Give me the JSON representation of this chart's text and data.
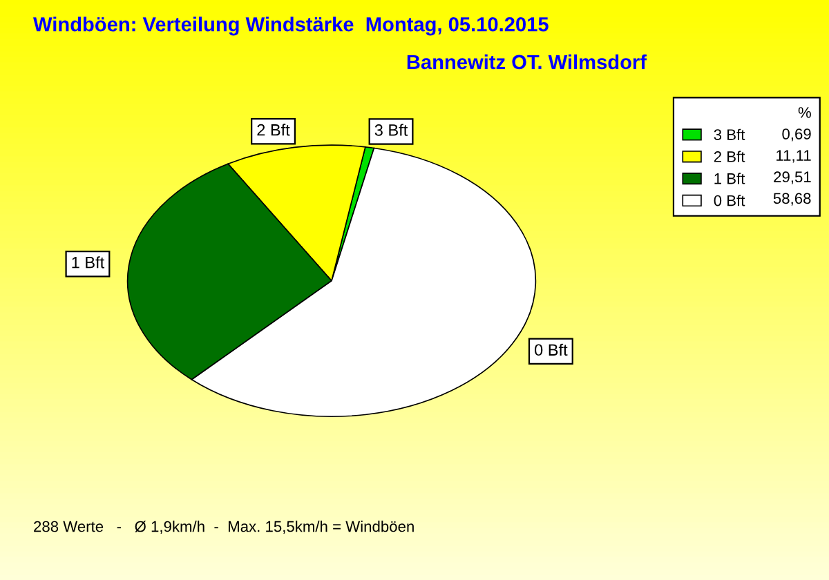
{
  "chart_data": {
    "type": "pie",
    "title": "Windböen: Verteilung Windstärke  Montag, 05.10.2015",
    "subtitle": "Bannewitz OT. Wilmsdorf",
    "categories": [
      "3 Bft",
      "2 Bft",
      "1 Bft",
      "0 Bft"
    ],
    "values": [
      0.69,
      11.11,
      29.51,
      58.68
    ],
    "value_labels": [
      "0,69",
      "11,11",
      "29,51",
      "58,68"
    ],
    "colors": [
      "#00e000",
      "#ffff00",
      "#007000",
      "#ffffff"
    ],
    "legend": "top right",
    "legend_title": "%",
    "annotations": [
      "288 Werte   -   Ø 1,9km/h  -  Max. 15,5km/h = Windböen"
    ]
  }
}
